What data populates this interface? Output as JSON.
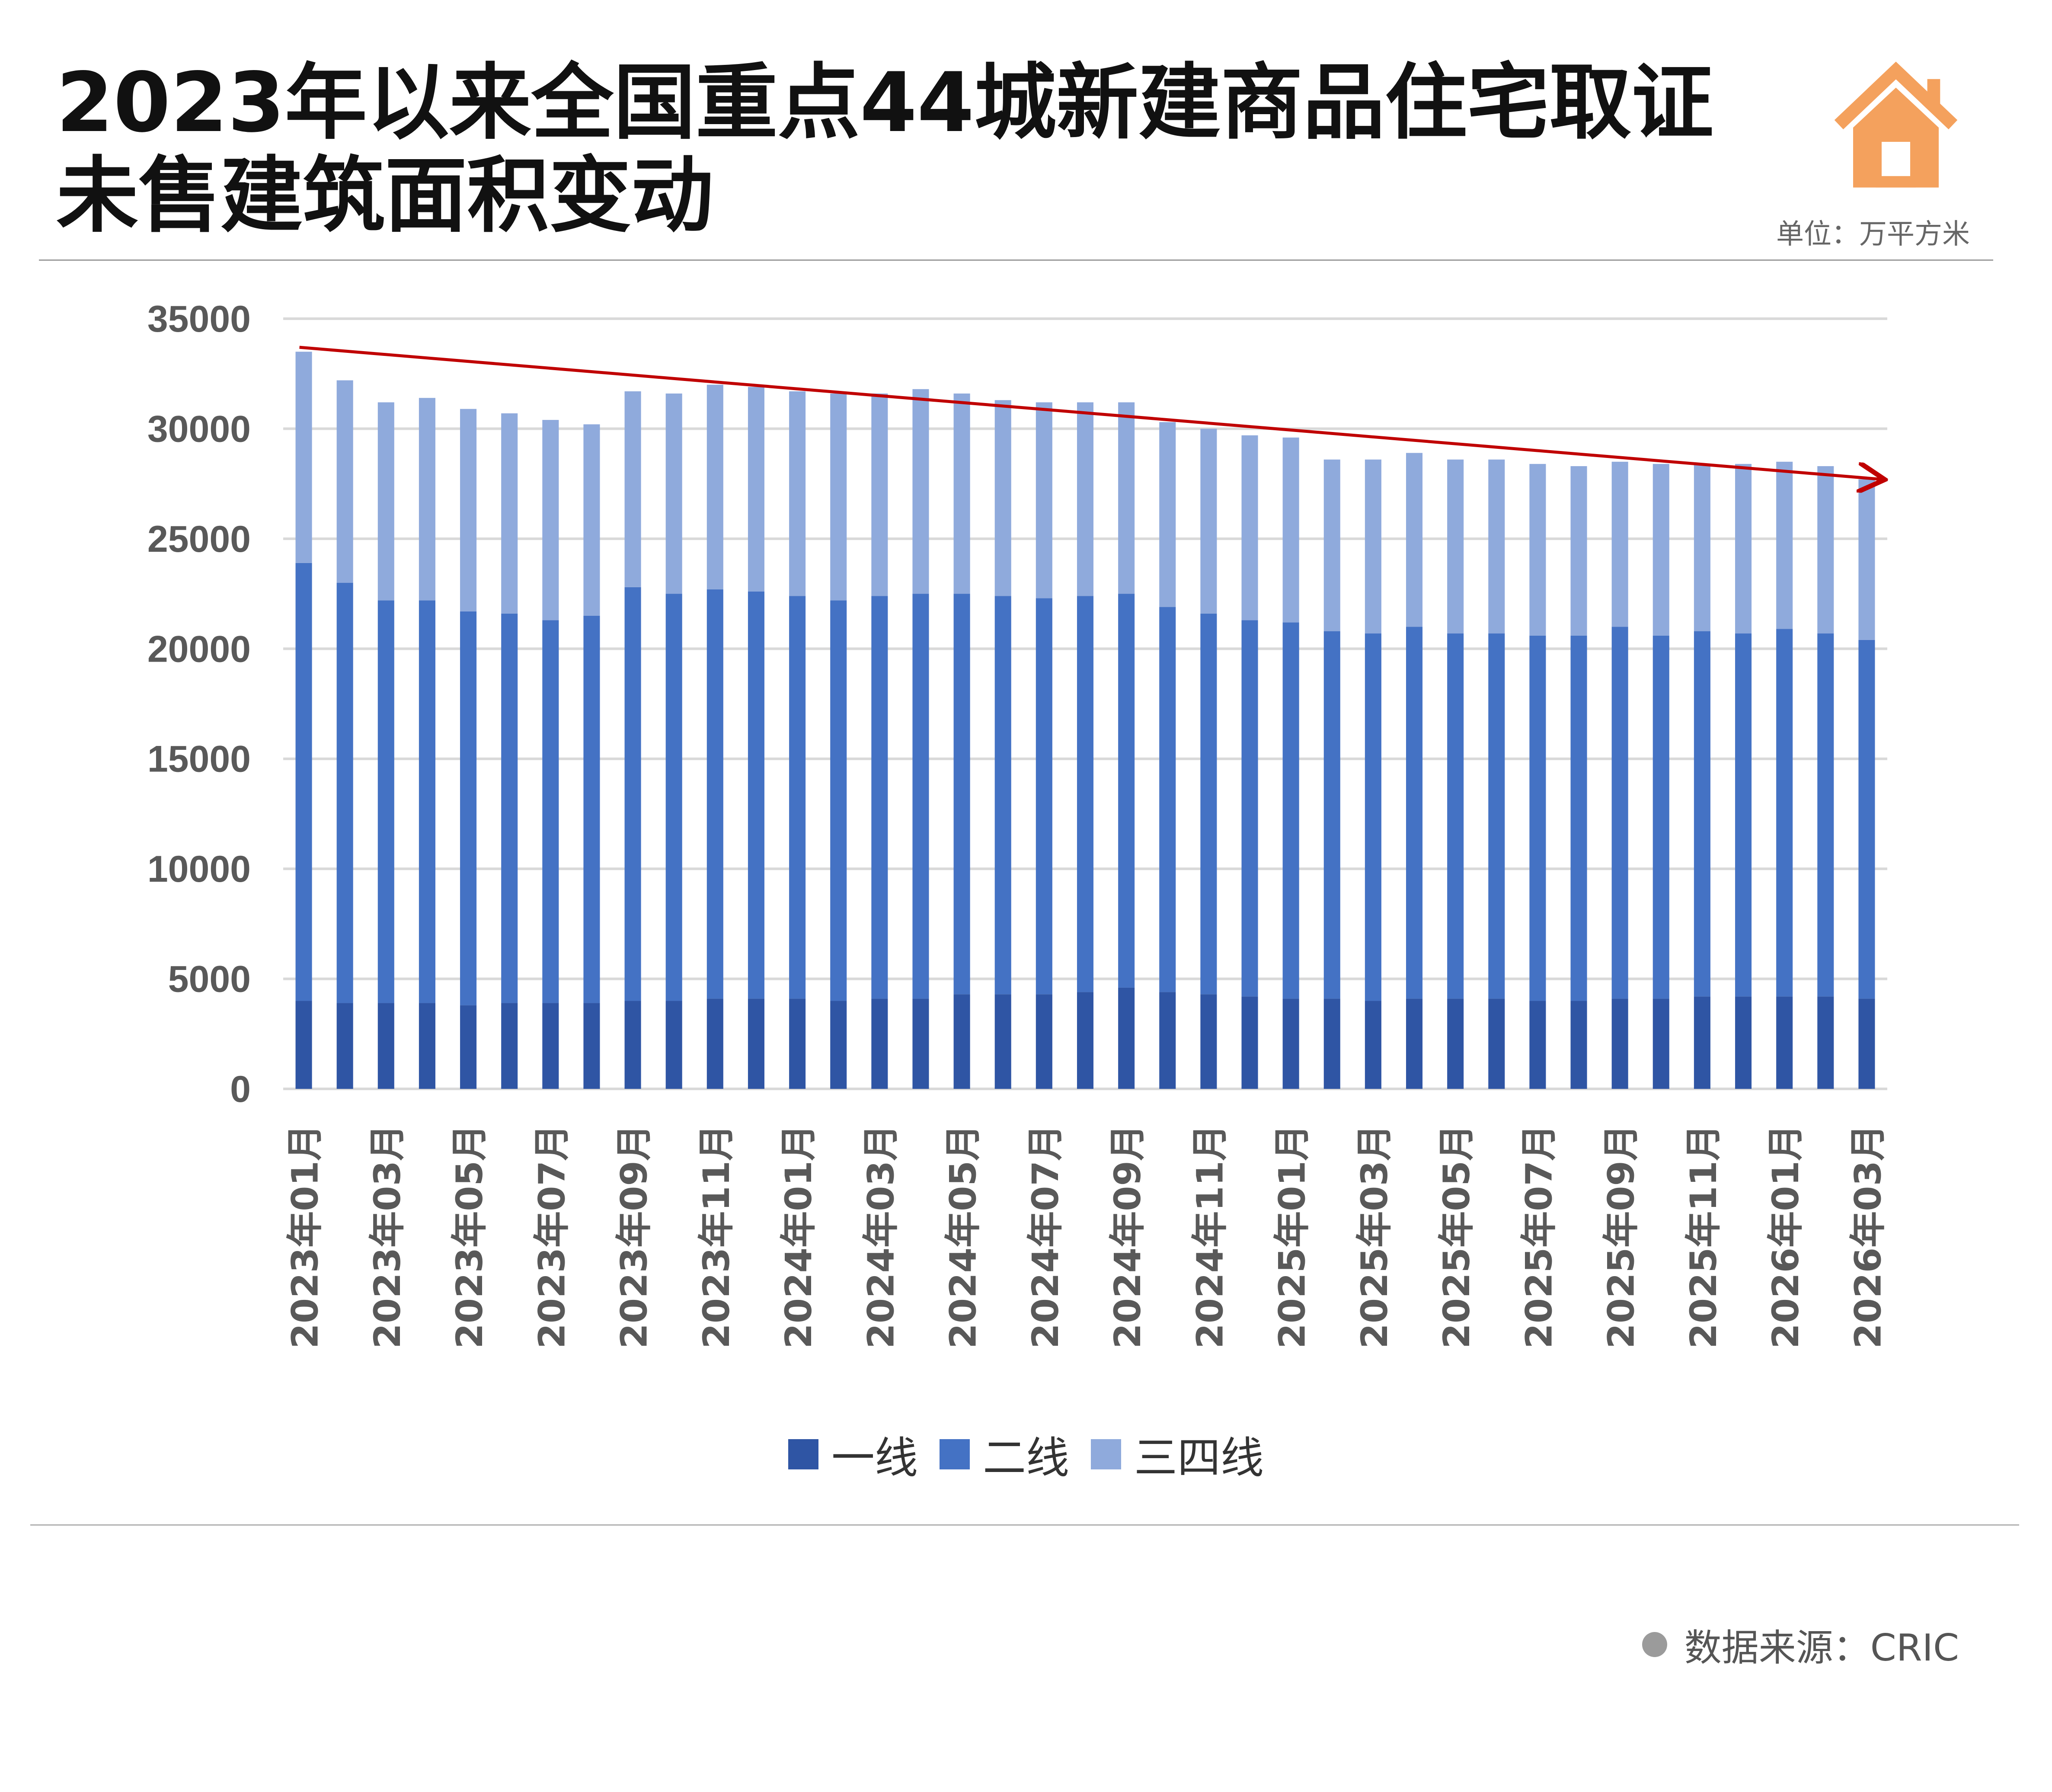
{
  "header": {
    "title": "2023年以来全国重点44城新建商品住宅取证未售建筑面积变动",
    "unit": "单位：万平方米",
    "logo_icon": "house-icon"
  },
  "footer": {
    "source": "数据来源：CRIC"
  },
  "colors": {
    "tier1": "#2f55a4",
    "tier2": "#4472c4",
    "tier34": "#8faadc",
    "trend": "#c00000",
    "house": "#f4a15d"
  },
  "chart_data": {
    "type": "bar",
    "stacked": true,
    "title": "2023年以来全国重点44城新建商品住宅取证未售建筑面积变动",
    "ylim": [
      0,
      35000
    ],
    "yticks": [
      0,
      5000,
      10000,
      15000,
      20000,
      25000,
      30000,
      35000
    ],
    "grid": true,
    "legend_position": "bottom",
    "categories": [
      "2023年01月",
      "2023年02月",
      "2023年03月",
      "2023年04月",
      "2023年05月",
      "2023年06月",
      "2023年07月",
      "2023年08月",
      "2023年09月",
      "2023年10月",
      "2023年11月",
      "2023年12月",
      "2024年01月",
      "2024年02月",
      "2024年03月",
      "2024年04月",
      "2024年05月",
      "2024年06月",
      "2024年07月",
      "2024年08月",
      "2024年09月",
      "2024年10月",
      "2024年11月",
      "2024年12月",
      "2025年01月",
      "2025年02月",
      "2025年03月",
      "2025年04月",
      "2025年05月",
      "2025年06月",
      "2025年07月",
      "2025年08月",
      "2025年09月",
      "2025年10月",
      "2025年11月",
      "2025年12月",
      "2026年01月",
      "2026年02月",
      "2026年03月"
    ],
    "xtick_labels": [
      "2023年01月",
      "2023年03月",
      "2023年05月",
      "2023年07月",
      "2023年09月",
      "2023年11月",
      "2024年01月",
      "2024年03月",
      "2024年05月",
      "2024年07月",
      "2024年09月",
      "2024年11月",
      "2025年01月",
      "2025年03月",
      "2025年05月",
      "2025年07月",
      "2025年09月",
      "2025年11月",
      "2026年01月",
      "2026年03月"
    ],
    "series": [
      {
        "name": "一线",
        "values": [
          4000,
          3900,
          3900,
          3900,
          3800,
          3900,
          3900,
          3900,
          4000,
          4000,
          4100,
          4100,
          4100,
          4000,
          4100,
          4100,
          4300,
          4300,
          4300,
          4400,
          4600,
          4400,
          4300,
          4200,
          4100,
          4100,
          4000,
          4100,
          4100,
          4100,
          4000,
          4000,
          4100,
          4100,
          4200,
          4200,
          4200,
          4200,
          4100
        ]
      },
      {
        "name": "二线",
        "values": [
          19900,
          19100,
          18300,
          18300,
          17900,
          17700,
          17400,
          17600,
          18800,
          18500,
          18600,
          18500,
          18300,
          18200,
          18300,
          18400,
          18200,
          18100,
          18000,
          18000,
          17900,
          17500,
          17300,
          17100,
          17100,
          16700,
          16700,
          16900,
          16600,
          16600,
          16600,
          16600,
          16900,
          16500,
          16600,
          16500,
          16700,
          16500,
          16300
        ]
      },
      {
        "name": "三四线",
        "values": [
          9600,
          9200,
          9000,
          9200,
          9200,
          9100,
          9100,
          8700,
          8900,
          9100,
          9300,
          9300,
          9300,
          9400,
          9200,
          9300,
          9100,
          8900,
          8900,
          8800,
          8700,
          8400,
          8400,
          8400,
          8400,
          7800,
          7900,
          7900,
          7900,
          7900,
          7800,
          7700,
          7500,
          7800,
          7600,
          7700,
          7600,
          7600,
          7300
        ]
      }
    ],
    "trend_line": {
      "start": 33700,
      "end": 27700
    }
  }
}
